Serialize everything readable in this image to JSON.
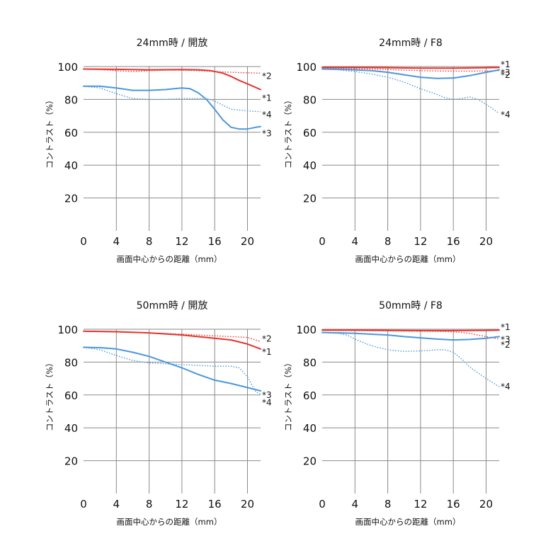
{
  "chart_data": [
    {
      "type": "line",
      "title": "24mm時 / 開放",
      "xlabel": "画面中心からの距離（mm）",
      "ylabel": "コントラスト（%）",
      "xlim": [
        0,
        21.6
      ],
      "ylim": [
        0,
        100
      ],
      "xticks": [
        0,
        4,
        8,
        12,
        16,
        20
      ],
      "yticks": [
        20,
        40,
        60,
        80,
        100
      ],
      "grid": true,
      "series": [
        {
          "name": "*1",
          "color": "#e8322c",
          "dash": false,
          "x": [
            0,
            4,
            8,
            12,
            14,
            15.5,
            17,
            18,
            19,
            20,
            21.6
          ],
          "y": [
            98.5,
            98.3,
            98,
            98.2,
            98,
            97.5,
            96,
            94,
            91.5,
            89.5,
            86
          ]
        },
        {
          "name": "*2",
          "color": "#e8322c",
          "dash": true,
          "x": [
            0,
            2,
            4,
            6,
            8,
            10,
            12,
            14,
            16,
            18,
            20,
            21.6
          ],
          "y": [
            98.5,
            98.2,
            97.5,
            97,
            97.5,
            97.8,
            97.8,
            97.5,
            97,
            96.5,
            96.2,
            96
          ]
        },
        {
          "name": "*3",
          "color": "#4a97dc",
          "dash": false,
          "x": [
            0,
            2,
            4,
            6,
            8,
            10,
            12,
            13,
            14,
            15,
            16,
            17,
            18,
            19,
            20,
            21,
            21.6
          ],
          "y": [
            88,
            88,
            87,
            85.5,
            85.5,
            86,
            87,
            86.5,
            84,
            80,
            74,
            67.5,
            63,
            62,
            62,
            63,
            63.5
          ]
        },
        {
          "name": "*4",
          "color": "#4a97dc",
          "dash": true,
          "x": [
            0,
            2,
            4,
            6,
            8,
            10,
            12,
            14,
            15,
            16,
            17,
            18,
            20,
            21.6
          ],
          "y": [
            88,
            87,
            83.5,
            80.5,
            80,
            80,
            80.5,
            80.5,
            80.5,
            79,
            76.5,
            74,
            73,
            72.5
          ]
        }
      ],
      "labels": [
        "*2",
        "*1",
        "*4",
        "*3"
      ]
    },
    {
      "type": "line",
      "title": "24mm時 / F8",
      "xlabel": "画面中心からの距離（mm）",
      "ylabel": "コントラスト（%）",
      "xlim": [
        0,
        21.6
      ],
      "ylim": [
        0,
        100
      ],
      "xticks": [
        0,
        4,
        8,
        12,
        16,
        20
      ],
      "yticks": [
        20,
        40,
        60,
        80,
        100
      ],
      "grid": true,
      "series": [
        {
          "name": "*1",
          "color": "#e8322c",
          "dash": false,
          "x": [
            0,
            4,
            8,
            12,
            16,
            20,
            21.6
          ],
          "y": [
            99.5,
            99.5,
            99.3,
            99,
            99,
            99.3,
            99.5
          ]
        },
        {
          "name": "*2",
          "color": "#e8322c",
          "dash": true,
          "x": [
            0,
            4,
            8,
            12,
            16,
            20,
            21.6
          ],
          "y": [
            99,
            98.8,
            98.2,
            97.5,
            97.2,
            97.3,
            97.5
          ]
        },
        {
          "name": "*3",
          "color": "#4a97dc",
          "dash": false,
          "x": [
            0,
            2,
            4,
            6,
            8,
            10,
            12,
            14,
            16,
            18,
            20,
            21.6
          ],
          "y": [
            98.5,
            98.3,
            98,
            97.5,
            96.5,
            95,
            93.5,
            92.8,
            93,
            94.5,
            96.5,
            98
          ]
        },
        {
          "name": "*4",
          "color": "#4a97dc",
          "dash": true,
          "x": [
            0,
            2,
            4,
            6,
            8,
            10,
            12,
            14,
            15,
            16,
            17,
            18,
            19,
            20,
            21.6
          ],
          "y": [
            98.5,
            98,
            97,
            95.5,
            93.5,
            90.5,
            86.5,
            83,
            81,
            80,
            80.5,
            81.5,
            80,
            77,
            71.5
          ]
        }
      ],
      "labels": [
        "*1",
        "*3",
        "*2",
        "*4"
      ]
    },
    {
      "type": "line",
      "title": "50mm時 / 開放",
      "xlabel": "画面中心からの距離（mm）",
      "ylabel": "コントラスト（%）",
      "xlim": [
        0,
        21.6
      ],
      "ylim": [
        0,
        100
      ],
      "xticks": [
        0,
        4,
        8,
        12,
        16,
        20
      ],
      "yticks": [
        20,
        40,
        60,
        80,
        100
      ],
      "grid": true,
      "series": [
        {
          "name": "*1",
          "color": "#e8322c",
          "dash": false,
          "x": [
            0,
            4,
            8,
            12,
            16,
            18,
            20,
            21.6
          ],
          "y": [
            98.8,
            98.5,
            97.8,
            96.5,
            94.5,
            93.5,
            91,
            88
          ]
        },
        {
          "name": "*2",
          "color": "#e8322c",
          "dash": true,
          "x": [
            0,
            4,
            8,
            12,
            16,
            18,
            20,
            21.6
          ],
          "y": [
            98.8,
            98.3,
            97.8,
            97,
            96,
            95.5,
            95,
            92.5
          ]
        },
        {
          "name": "*3",
          "color": "#4a97dc",
          "dash": false,
          "x": [
            0,
            2,
            4,
            6,
            8,
            10,
            12,
            14,
            16,
            18,
            20,
            21.6
          ],
          "y": [
            89,
            88.8,
            88,
            86,
            83.5,
            80,
            76.5,
            72.5,
            69,
            67,
            64.5,
            62.5
          ]
        },
        {
          "name": "*4",
          "color": "#4a97dc",
          "dash": true,
          "x": [
            0,
            2,
            4,
            6,
            8,
            10,
            12,
            14,
            16,
            18,
            19,
            20,
            21,
            21.6
          ],
          "y": [
            89,
            87.5,
            84,
            81,
            79.5,
            79,
            78.5,
            78,
            77.5,
            77.5,
            76.5,
            71,
            62,
            60.5
          ]
        }
      ],
      "labels": [
        "*2",
        "*1",
        "*3",
        "*4"
      ]
    },
    {
      "type": "line",
      "title": "50mm時 / F8",
      "xlabel": "画面中心からの距離（mm）",
      "ylabel": "コントラスト（%）",
      "xlim": [
        0,
        21.6
      ],
      "ylim": [
        0,
        100
      ],
      "xticks": [
        0,
        4,
        8,
        12,
        16,
        20
      ],
      "yticks": [
        20,
        40,
        60,
        80,
        100
      ],
      "grid": true,
      "series": [
        {
          "name": "*1",
          "color": "#e8322c",
          "dash": false,
          "x": [
            0,
            4,
            8,
            12,
            16,
            20,
            21.6
          ],
          "y": [
            99.5,
            99.5,
            99.3,
            99.2,
            99.2,
            99.3,
            99.5
          ]
        },
        {
          "name": "*2",
          "color": "#e8322c",
          "dash": true,
          "x": [
            0,
            4,
            8,
            12,
            14,
            16,
            18,
            20,
            21.6
          ],
          "y": [
            99.3,
            99.2,
            99,
            98.8,
            98.7,
            98.5,
            97.5,
            95.5,
            94
          ]
        },
        {
          "name": "*3",
          "color": "#4a97dc",
          "dash": false,
          "x": [
            0,
            2,
            4,
            6,
            8,
            10,
            12,
            14,
            16,
            18,
            20,
            21.6
          ],
          "y": [
            98,
            97.8,
            97.5,
            97,
            96.5,
            95.5,
            94.8,
            94,
            93.5,
            93.8,
            94.5,
            95.5
          ]
        },
        {
          "name": "*4",
          "color": "#4a97dc",
          "dash": true,
          "x": [
            0,
            2,
            3,
            4,
            6,
            8,
            10,
            12,
            14,
            15,
            16,
            17,
            18,
            20,
            21.6
          ],
          "y": [
            98,
            97.5,
            96.5,
            94,
            90,
            87.5,
            86.5,
            86.8,
            87.5,
            87.5,
            86,
            82,
            77,
            70,
            65
          ]
        }
      ],
      "labels": [
        "*1",
        "*3",
        "*2",
        "*4"
      ]
    }
  ]
}
